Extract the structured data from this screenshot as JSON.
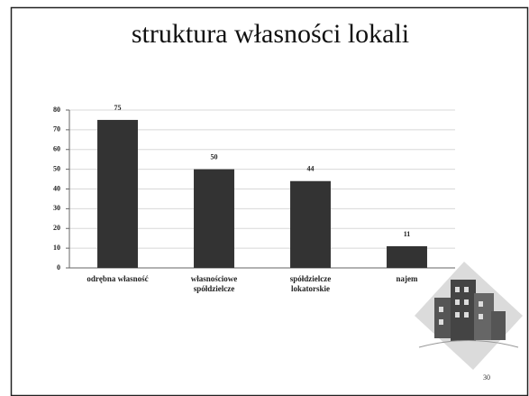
{
  "chart_data": {
    "type": "bar",
    "title": "struktura własności lokali",
    "categories": [
      "odrębna własność",
      "własnościowe\nspółdzielcze",
      "spółdzielcze\nlokatorskie",
      "najem"
    ],
    "values": [
      75,
      50,
      44,
      11
    ],
    "color": "#333333",
    "ylim": [
      0,
      80
    ],
    "yticks": [
      0,
      10,
      20,
      30,
      40,
      50,
      60,
      70,
      80
    ],
    "grid": true
  },
  "page_number": "30"
}
